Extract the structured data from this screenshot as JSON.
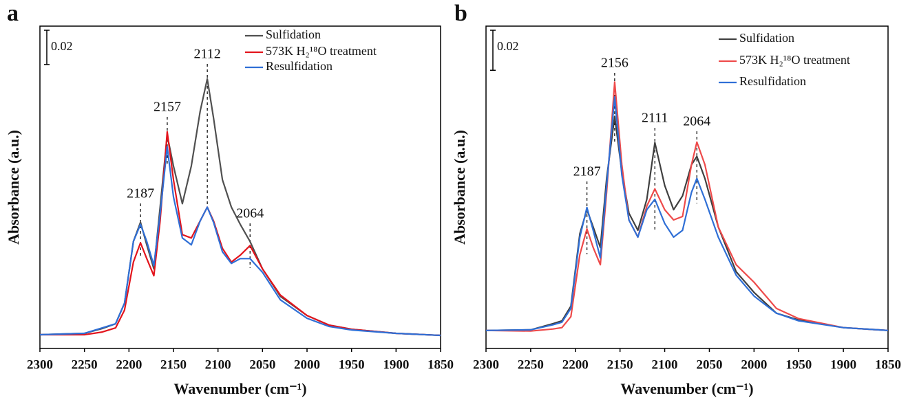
{
  "chart_data": [
    {
      "type": "line",
      "panel_label": "a",
      "xlabel": "Wavenumber (cm⁻¹)",
      "ylabel": "Absorbance (a.u.)",
      "xlim": [
        2300,
        1850
      ],
      "xticks": [
        2300,
        2250,
        2200,
        2150,
        2100,
        2050,
        2000,
        1950,
        1900,
        1850
      ],
      "ylim": [
        -0.008,
        0.18
      ],
      "scale_bar": 0.02,
      "peaks": [
        2187,
        2157,
        2112,
        2064
      ],
      "legend": "upper right",
      "x": [
        2300,
        2250,
        2230,
        2215,
        2205,
        2195,
        2187,
        2180,
        2172,
        2165,
        2157,
        2150,
        2140,
        2130,
        2120,
        2112,
        2105,
        2095,
        2085,
        2075,
        2064,
        2050,
        2030,
        2000,
        1975,
        1950,
        1900,
        1850
      ],
      "series": [
        {
          "name": "Sulfidation",
          "color": "#505050",
          "values": [
            0,
            0.0008,
            0.0036,
            0.0064,
            0.0184,
            0.0544,
            0.0656,
            0.0524,
            0.0384,
            0.0744,
            0.1164,
            0.0984,
            0.0764,
            0.0984,
            0.1304,
            0.1492,
            0.1264,
            0.0904,
            0.0744,
            0.0644,
            0.0544,
            0.0384,
            0.0224,
            0.0112,
            0.0056,
            0.0032,
            0.0008,
            -0.0004
          ]
        },
        {
          "name": "573K H₂¹⁸O treatment",
          "color": "#e3141c",
          "values": [
            0,
            0,
            0.0016,
            0.004,
            0.0144,
            0.0424,
            0.0536,
            0.0444,
            0.0344,
            0.0664,
            0.1184,
            0.0904,
            0.0584,
            0.0564,
            0.0664,
            0.0744,
            0.0664,
            0.0504,
            0.0424,
            0.0464,
            0.052,
            0.0384,
            0.0232,
            0.0112,
            0.0056,
            0.0032,
            0.0008,
            -0.0004
          ]
        },
        {
          "name": "Resulfidation",
          "color": "#2f6fd6",
          "values": [
            0,
            0.0008,
            0.004,
            0.0064,
            0.0184,
            0.0544,
            0.0644,
            0.0544,
            0.0404,
            0.0704,
            0.1096,
            0.0804,
            0.0564,
            0.0524,
            0.0664,
            0.0744,
            0.0656,
            0.0484,
            0.0416,
            0.0444,
            0.0444,
            0.0364,
            0.0204,
            0.0096,
            0.0048,
            0.0028,
            0.0008,
            -0.0004
          ]
        }
      ]
    },
    {
      "type": "line",
      "panel_label": "b",
      "xlabel": "Wavenumber (cm⁻¹)",
      "ylabel": "Absorbance (a.u.)",
      "xlim": [
        2300,
        1850
      ],
      "xticks": [
        2300,
        2250,
        2200,
        2150,
        2100,
        2050,
        2000,
        1950,
        1900,
        1850
      ],
      "ylim": [
        -0.009,
        0.152
      ],
      "scale_bar": 0.02,
      "peaks": [
        2187,
        2156,
        2111,
        2064
      ],
      "legend": "upper right",
      "x": [
        2300,
        2250,
        2225,
        2215,
        2205,
        2195,
        2187,
        2180,
        2172,
        2165,
        2156,
        2148,
        2140,
        2130,
        2120,
        2111,
        2100,
        2090,
        2080,
        2070,
        2064,
        2055,
        2040,
        2020,
        2000,
        1975,
        1950,
        1900,
        1850
      ],
      "series": [
        {
          "name": "Sulfidation",
          "color": "#404040",
          "values": [
            0,
            0.0003,
            0.0034,
            0.0048,
            0.0121,
            0.0483,
            0.0603,
            0.0517,
            0.0414,
            0.0759,
            0.1069,
            0.0793,
            0.0586,
            0.05,
            0.0655,
            0.0938,
            0.0724,
            0.0603,
            0.0672,
            0.0828,
            0.0869,
            0.0759,
            0.0517,
            0.0293,
            0.019,
            0.0086,
            0.0052,
            0.0014,
            0
          ]
        },
        {
          "name": "573K H₂¹⁸O treatment",
          "color": "#ee4a4a",
          "values": [
            0,
            -0.0003,
            0.0007,
            0.0014,
            0.0069,
            0.0379,
            0.0507,
            0.0414,
            0.0328,
            0.069,
            0.1241,
            0.0828,
            0.0552,
            0.0466,
            0.0621,
            0.0707,
            0.0603,
            0.0552,
            0.0569,
            0.0828,
            0.0941,
            0.0828,
            0.0517,
            0.0328,
            0.0241,
            0.011,
            0.0059,
            0.0014,
            0
          ]
        },
        {
          "name": "Resulfidation",
          "color": "#2f6fd6",
          "values": [
            0,
            0.0003,
            0.0028,
            0.0041,
            0.011,
            0.0466,
            0.0614,
            0.05,
            0.0362,
            0.0724,
            0.1166,
            0.0776,
            0.0552,
            0.0466,
            0.0603,
            0.0655,
            0.0534,
            0.0466,
            0.05,
            0.069,
            0.0759,
            0.0655,
            0.0466,
            0.0276,
            0.0172,
            0.0086,
            0.0048,
            0.0014,
            0
          ]
        }
      ]
    }
  ]
}
